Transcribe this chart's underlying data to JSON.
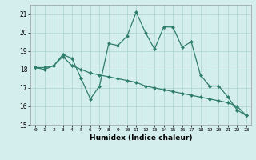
{
  "title": "",
  "xlabel": "Humidex (Indice chaleur)",
  "ylabel": "",
  "x": [
    0,
    1,
    2,
    3,
    4,
    5,
    6,
    7,
    8,
    9,
    10,
    11,
    12,
    13,
    14,
    15,
    16,
    17,
    18,
    19,
    20,
    21,
    22,
    23
  ],
  "line1": [
    18.1,
    18.0,
    18.2,
    18.8,
    18.6,
    17.5,
    16.4,
    17.1,
    19.4,
    19.3,
    19.8,
    21.1,
    20.0,
    19.1,
    20.3,
    20.3,
    19.2,
    19.5,
    17.7,
    17.1,
    17.1,
    16.5,
    15.8,
    15.5
  ],
  "line2": [
    18.1,
    18.1,
    18.2,
    18.7,
    18.2,
    18.0,
    17.8,
    17.7,
    17.6,
    17.5,
    17.4,
    17.3,
    17.1,
    17.0,
    16.9,
    16.8,
    16.7,
    16.6,
    16.5,
    16.4,
    16.3,
    16.2,
    16.0,
    15.5
  ],
  "ylim": [
    15,
    21.5
  ],
  "xlim": [
    -0.5,
    23.5
  ],
  "xticks": [
    0,
    1,
    2,
    3,
    4,
    5,
    6,
    7,
    8,
    9,
    10,
    11,
    12,
    13,
    14,
    15,
    16,
    17,
    18,
    19,
    20,
    21,
    22,
    23
  ],
  "yticks": [
    15,
    16,
    17,
    18,
    19,
    20,
    21
  ],
  "line_color": "#2e7d6d",
  "bg_color": "#d4eeed",
  "grid_color": "#aad4d0"
}
